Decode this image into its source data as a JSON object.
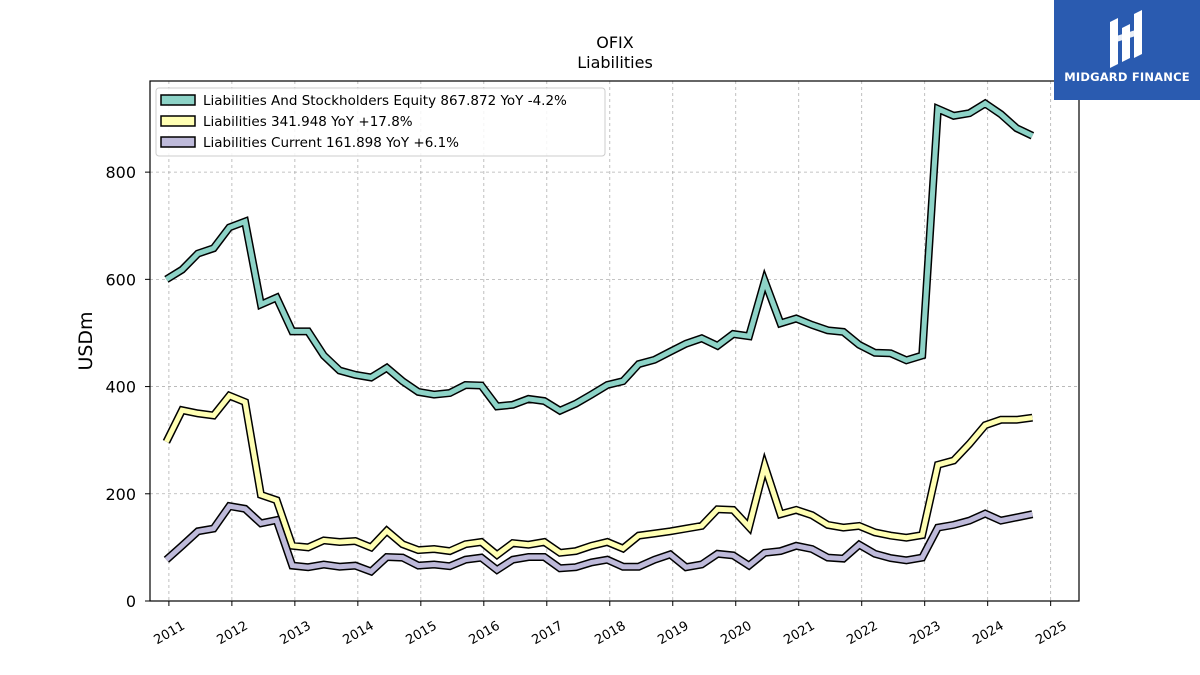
{
  "logo": {
    "brand": "MIDGARD FINANCE",
    "color": "#2a5bb0"
  },
  "chart_data": {
    "type": "line",
    "title": "OFIX",
    "subtitle": "Liabilities",
    "ylabel": "USDm",
    "xlabel": "",
    "ylim": [
      0,
      970
    ],
    "xlim": [
      2010.7,
      2025.45
    ],
    "yticks": [
      0,
      200,
      400,
      600,
      800
    ],
    "xticks": [
      2011,
      2012,
      2013,
      2014,
      2015,
      2016,
      2017,
      2018,
      2019,
      2020,
      2021,
      2022,
      2023,
      2024,
      2025
    ],
    "xtick_labels": [
      "2011",
      "2012",
      "2013",
      "2014",
      "2015",
      "2016",
      "2017",
      "2018",
      "2019",
      "2020",
      "2021",
      "2022",
      "2023",
      "2024",
      "2025"
    ],
    "grid": true,
    "legend_position": "top-left",
    "x": [
      2010.96,
      2011.21,
      2011.46,
      2011.71,
      2011.96,
      2012.21,
      2012.46,
      2012.71,
      2012.96,
      2013.21,
      2013.46,
      2013.71,
      2013.96,
      2014.21,
      2014.46,
      2014.71,
      2014.96,
      2015.21,
      2015.46,
      2015.71,
      2015.96,
      2016.21,
      2016.46,
      2016.71,
      2016.96,
      2017.21,
      2017.46,
      2017.71,
      2017.96,
      2018.21,
      2018.46,
      2018.71,
      2018.96,
      2019.21,
      2019.46,
      2019.71,
      2019.96,
      2020.21,
      2020.46,
      2020.71,
      2020.96,
      2021.21,
      2021.46,
      2021.71,
      2021.96,
      2022.21,
      2022.46,
      2022.71,
      2022.96,
      2023.21,
      2023.46,
      2023.71,
      2023.96,
      2024.21,
      2024.46,
      2024.71
    ],
    "series": [
      {
        "name": "Liabilities And Stockholders Equity",
        "legend": "Liabilities And Stockholders Equity  867.872 YoY -4.2%",
        "color": "#8dd3c7",
        "values": [
          600,
          618,
          648,
          658,
          697,
          708,
          553,
          566,
          503,
          503,
          458,
          430,
          422,
          417,
          435,
          410,
          390,
          385,
          388,
          403,
          402,
          363,
          366,
          377,
          373,
          355,
          368,
          385,
          403,
          410,
          442,
          450,
          465,
          480,
          490,
          476,
          498,
          494,
          597,
          518,
          527,
          515,
          505,
          502,
          478,
          463,
          462,
          449,
          458,
          918,
          905,
          910,
          928,
          908,
          882,
          867.872
        ]
      },
      {
        "name": "Liabilities",
        "legend": "Liabilities  341.948 YoY +17.8%",
        "color": "#ffffb3",
        "values": [
          297,
          356,
          350,
          346,
          383,
          371,
          198,
          188,
          103,
          100,
          113,
          110,
          112,
          100,
          131,
          106,
          95,
          97,
          93,
          106,
          110,
          86,
          108,
          105,
          110,
          90,
          93,
          103,
          110,
          98,
          122,
          126,
          130,
          135,
          140,
          171,
          170,
          138,
          252,
          162,
          170,
          160,
          142,
          137,
          140,
          128,
          122,
          118,
          123,
          254,
          262,
          293,
          328,
          338,
          338,
          341.948
        ]
      },
      {
        "name": "Liabilities Current",
        "legend": "Liabilities Current  161.898 YoY +6.1%",
        "color": "#bebada",
        "values": [
          77,
          103,
          130,
          135,
          177,
          172,
          145,
          151,
          66,
          63,
          68,
          64,
          66,
          55,
          82,
          81,
          66,
          68,
          65,
          77,
          81,
          58,
          77,
          82,
          82,
          61,
          63,
          72,
          77,
          64,
          64,
          77,
          87,
          63,
          68,
          88,
          85,
          66,
          90,
          93,
          103,
          97,
          81,
          79,
          105,
          88,
          80,
          76,
          81,
          137,
          142,
          150,
          163,
          150,
          156,
          161.898
        ]
      }
    ]
  }
}
